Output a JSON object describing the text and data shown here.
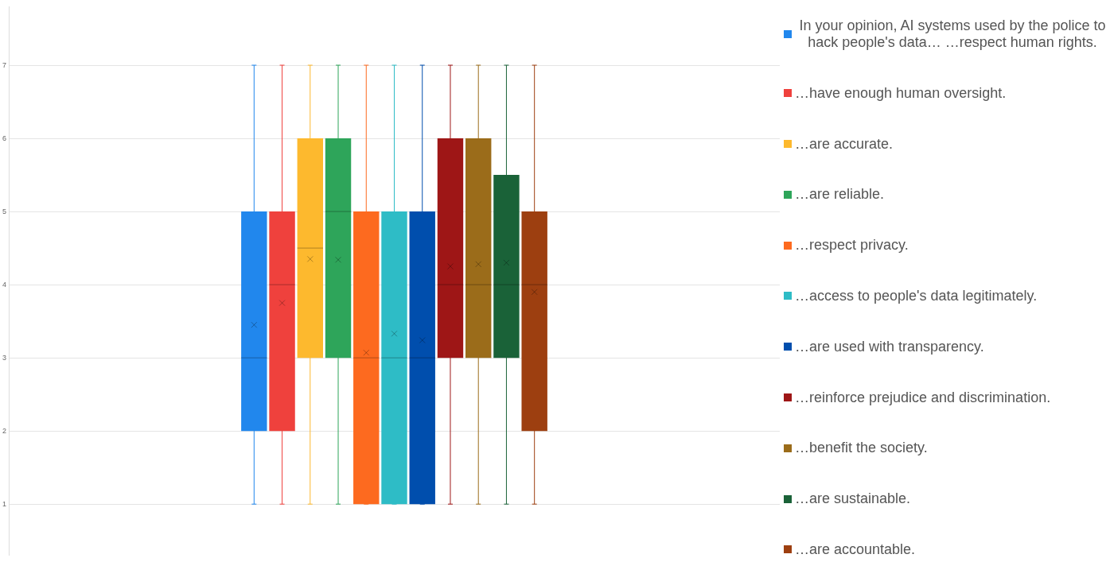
{
  "chart_data": {
    "type": "box",
    "categories": [
      null
    ],
    "ylim": [
      0.3,
      7.8
    ],
    "yticks": [
      1,
      2,
      3,
      4,
      5,
      6,
      7
    ],
    "grid": "y",
    "tick_labels": "y",
    "legend": "right",
    "series": [
      {
        "name": "In your opinion, AI systems used by the police to hack people's data… …respect human rights.",
        "color": "#2187ed",
        "boxes": [
          {
            "low": 1,
            "q1": 2,
            "median": 3,
            "q3": 5,
            "high": 7,
            "mean": 3.45
          }
        ]
      },
      {
        "name": "…have enough human oversight.",
        "color": "#ef413d",
        "boxes": [
          {
            "low": 1,
            "q1": 2,
            "median": 4,
            "q3": 5,
            "high": 7,
            "mean": 3.75
          }
        ]
      },
      {
        "name": "…are accurate.",
        "color": "#fdb92e",
        "boxes": [
          {
            "low": 1,
            "q1": 3,
            "median": 4.5,
            "q3": 6,
            "high": 7,
            "mean": 4.35
          }
        ]
      },
      {
        "name": "…are reliable.",
        "color": "#2ea55a",
        "boxes": [
          {
            "low": 1,
            "q1": 3,
            "median": 5,
            "q3": 6,
            "high": 7,
            "mean": 4.34
          }
        ]
      },
      {
        "name": "…respect privacy.",
        "color": "#fd6a1f",
        "boxes": [
          {
            "low": 1,
            "q1": 1,
            "median": 3,
            "q3": 5,
            "high": 7,
            "mean": 3.07
          }
        ]
      },
      {
        "name": "…access to people's data legitimately.",
        "color": "#2ebcc6",
        "boxes": [
          {
            "low": 1,
            "q1": 1,
            "median": 3,
            "q3": 5,
            "high": 7,
            "mean": 3.33
          }
        ]
      },
      {
        "name": "…are used with transparency.",
        "color": "#004ead",
        "boxes": [
          {
            "low": 1,
            "q1": 1,
            "median": 3,
            "q3": 5,
            "high": 7,
            "mean": 3.24
          }
        ]
      },
      {
        "name": "…reinforce prejudice and discrimination.",
        "color": "#9e1616",
        "boxes": [
          {
            "low": 1,
            "q1": 3,
            "median": 4,
            "q3": 6,
            "high": 7,
            "mean": 4.25
          }
        ]
      },
      {
        "name": "…benefit the society.",
        "color": "#9b6c1a",
        "boxes": [
          {
            "low": 1,
            "q1": 3,
            "median": 4,
            "q3": 6,
            "high": 7,
            "mean": 4.28
          }
        ]
      },
      {
        "name": "…are sustainable.",
        "color": "#1a6238",
        "boxes": [
          {
            "low": 1,
            "q1": 3,
            "median": 4,
            "q3": 5.5,
            "high": 7,
            "mean": 4.3
          }
        ]
      },
      {
        "name": "…are accountable.",
        "color": "#9d3f10",
        "boxes": [
          {
            "low": 1,
            "q1": 2,
            "median": 4,
            "q3": 5,
            "high": 7,
            "mean": 3.9
          }
        ]
      }
    ]
  }
}
